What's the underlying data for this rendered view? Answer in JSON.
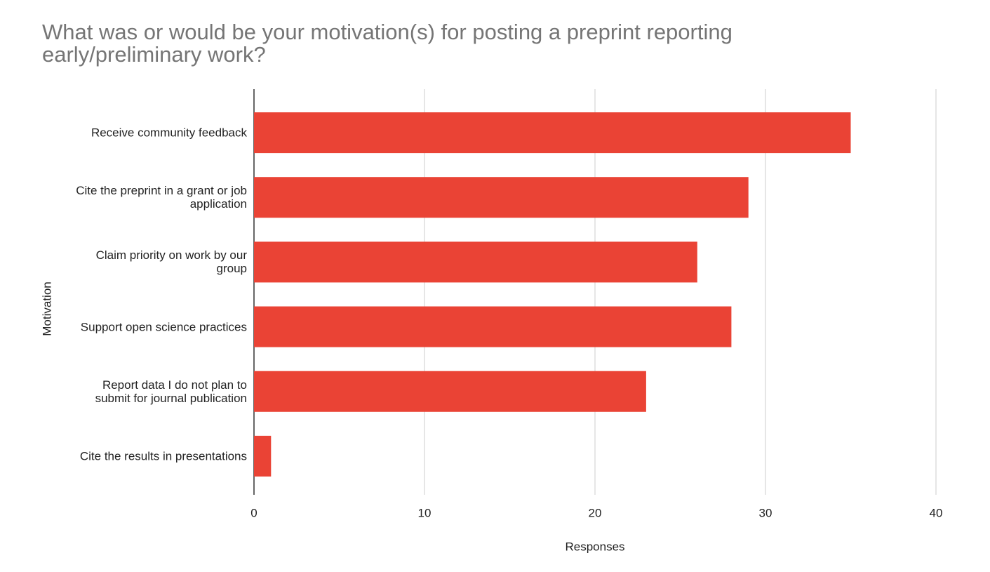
{
  "chart_data": {
    "type": "bar",
    "orientation": "horizontal",
    "title": "What was or would be your motivation(s) for posting a preprint reporting early/preliminary work?",
    "x_label": "Responses",
    "y_label": "Motivation",
    "categories": [
      "Receive community feedback",
      "Cite the preprint in a grant or job application",
      "Claim priority on work by our group",
      "Support open science practices",
      "Report data I do not plan to submit for journal publication",
      "Cite the results in presentations"
    ],
    "values": [
      35,
      29,
      26,
      28,
      23,
      1
    ],
    "color": "#ea4335",
    "xlim": [
      0,
      40
    ],
    "xticks": [
      0,
      10,
      20,
      30,
      40
    ],
    "grid": true
  }
}
